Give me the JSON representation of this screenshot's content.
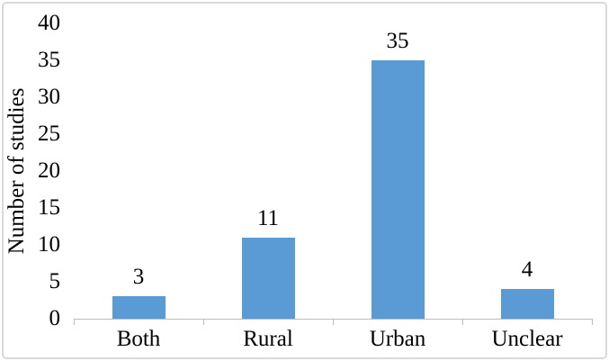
{
  "chart_data": {
    "type": "bar",
    "title": "",
    "ylabel": "Number of studies",
    "xlabel": "",
    "categories": [
      "Both",
      "Rural",
      "Urban",
      "Unclear"
    ],
    "values": [
      3,
      11,
      35,
      4
    ],
    "value_labels": [
      "3",
      "11",
      "35",
      "4"
    ],
    "ylim": [
      0,
      40
    ],
    "yticks": [
      0,
      5,
      10,
      15,
      20,
      25,
      30,
      35,
      40
    ],
    "grid": "off",
    "legend": "none",
    "bar_color": "#5B9BD5",
    "axis_color": "#BDBDBD",
    "text_color": "#000000",
    "frame_color": "#D9D9D9",
    "background": "#FFFFFF"
  }
}
